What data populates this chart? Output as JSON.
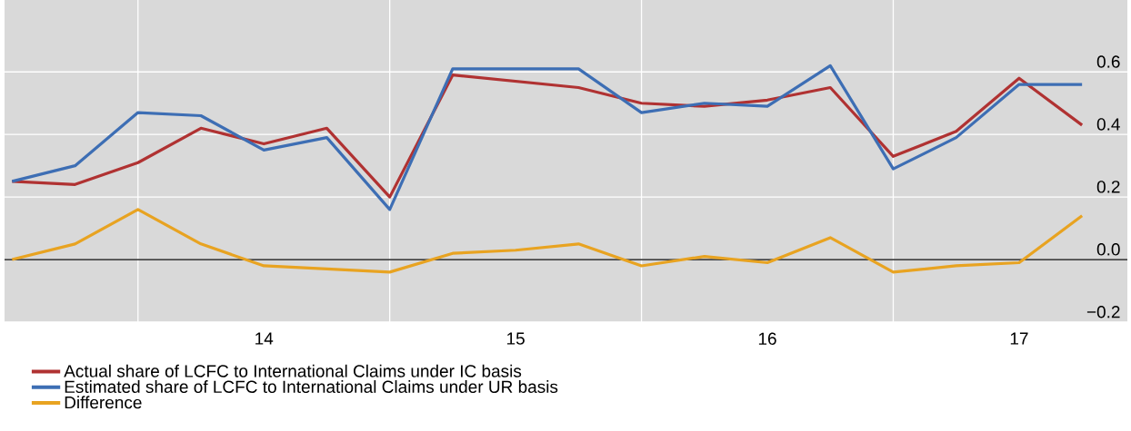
{
  "chart_data": {
    "type": "line",
    "categories": [
      null,
      null,
      null,
      null,
      "14",
      null,
      null,
      null,
      "15",
      null,
      null,
      null,
      "16",
      null,
      null,
      null,
      "17",
      null
    ],
    "series": [
      {
        "name": "Actual share of LCFC to International Claims under IC basis",
        "color": "#b03232",
        "values": [
          0.25,
          0.24,
          0.31,
          0.42,
          0.37,
          0.42,
          0.2,
          0.59,
          0.57,
          0.55,
          0.5,
          0.49,
          0.51,
          0.55,
          0.33,
          0.41,
          0.58,
          0.43
        ]
      },
      {
        "name": "Estimated share of LCFC to International Claims under UR basis",
        "color": "#3d6eb4",
        "values": [
          0.25,
          0.3,
          0.47,
          0.46,
          0.35,
          0.39,
          0.16,
          0.61,
          0.61,
          0.61,
          0.47,
          0.5,
          0.49,
          0.62,
          0.29,
          0.39,
          0.56,
          0.56
        ]
      },
      {
        "name": "Difference",
        "color": "#e8a321",
        "values": [
          0.0,
          0.05,
          0.16,
          0.05,
          -0.02,
          -0.03,
          -0.04,
          0.02,
          0.03,
          0.05,
          -0.02,
          0.01,
          -0.01,
          0.07,
          -0.04,
          -0.02,
          -0.01,
          0.14
        ]
      }
    ],
    "ylim": [
      -0.2,
      0.83
    ],
    "yticks": [
      {
        "value": -0.2,
        "label": "−0.2"
      },
      {
        "value": 0.0,
        "label": "0.0"
      },
      {
        "value": 0.2,
        "label": "0.2"
      },
      {
        "value": 0.4,
        "label": "0.4"
      },
      {
        "value": 0.6,
        "label": "0.6"
      }
    ],
    "ref_lines": [
      {
        "axis": "y",
        "value": 0,
        "color": "#000000"
      }
    ],
    "grid": true,
    "legend": "bottom"
  }
}
